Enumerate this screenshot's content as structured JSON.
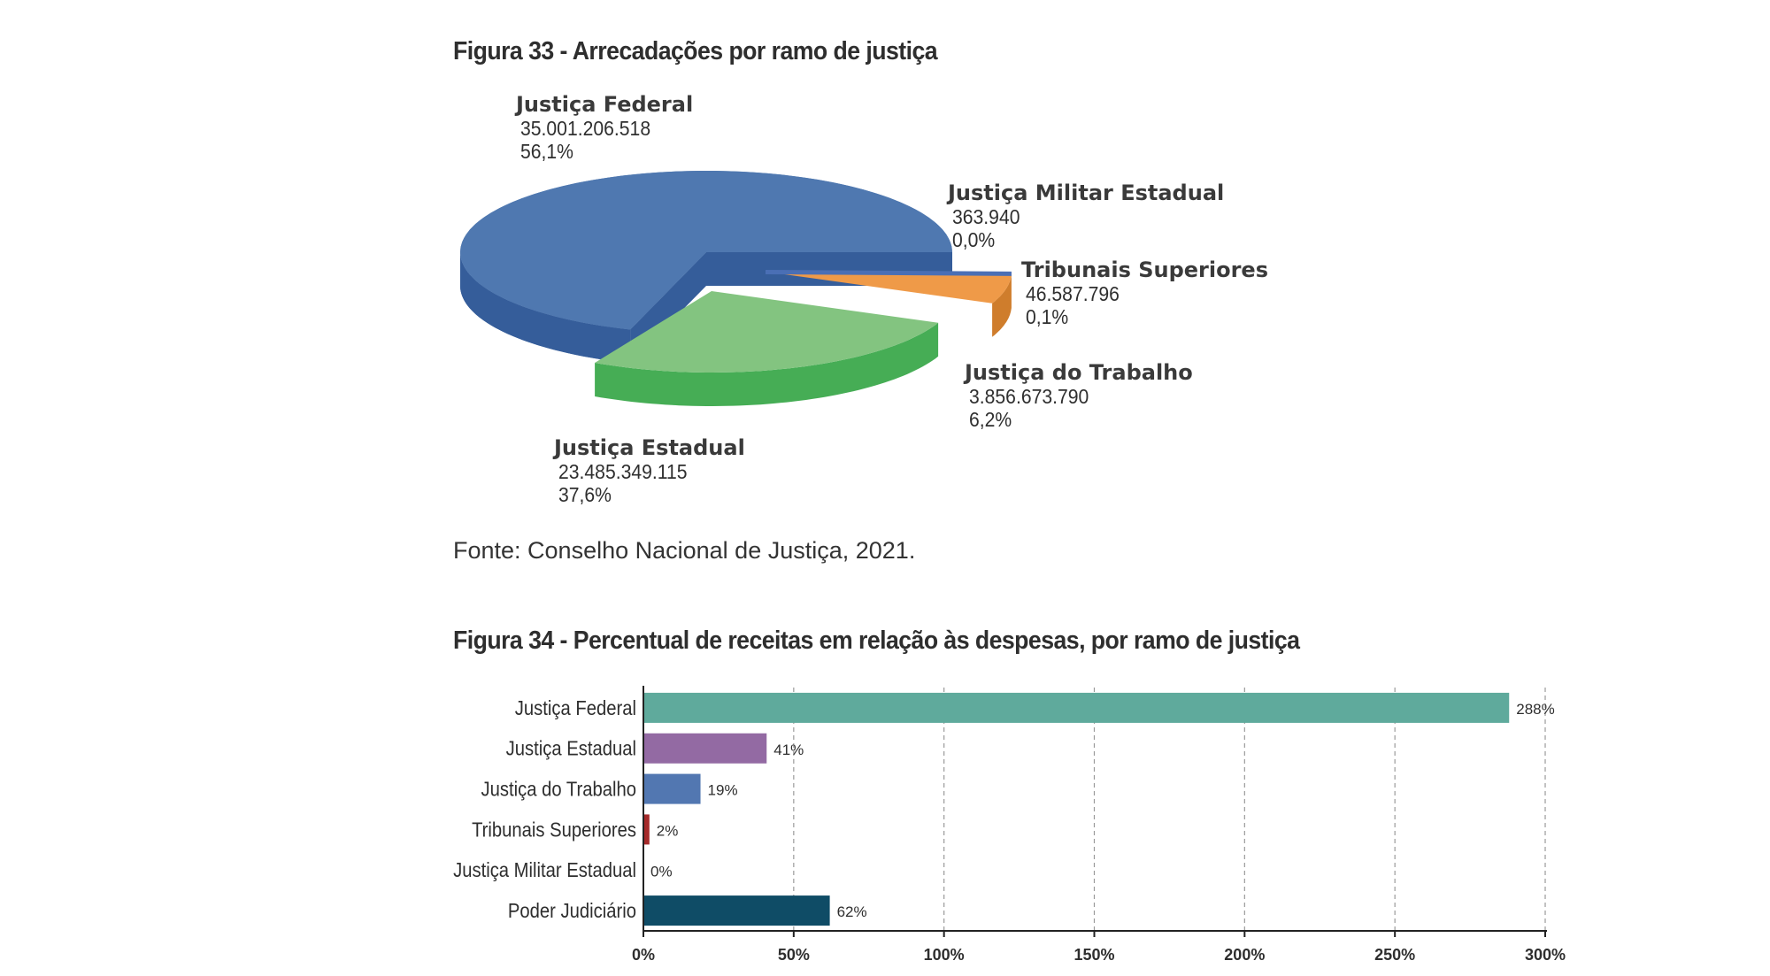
{
  "figure33": {
    "title": "Figura 33 - Arrecadações por ramo de justiça",
    "source": "Fonte: Conselho Nacional de Justiça, 2021."
  },
  "figure34": {
    "title": "Figura 34 - Percentual de receitas em relação às despesas, por ramo de justiça"
  },
  "chart_data": [
    {
      "type": "pie",
      "title": "Figura 33 - Arrecadações por ramo de justiça",
      "style": "3d-exploded",
      "slices": [
        {
          "label": "Justiça Federal",
          "value_text": "35.001.206.518",
          "value": 35001206518,
          "percent_text": "56,1%",
          "percent": 56.1,
          "color": "#4f78b0",
          "side_color": "#355d9a"
        },
        {
          "label": "Justiça Militar Estadual",
          "value_text": "363.940",
          "value": 363940,
          "percent_text": "0,0%",
          "percent": 0.0,
          "color": "#4a6fb5",
          "side_color": "#2f4f8f"
        },
        {
          "label": "Tribunais Superiores",
          "value_text": "46.587.796",
          "value": 46587796,
          "percent_text": "0,1%",
          "percent": 0.1,
          "color": "#ef9a48",
          "side_color": "#cf7d2c"
        },
        {
          "label": "Justiça do Trabalho",
          "value_text": "3.856.673.790",
          "value": 3856673790,
          "percent_text": "6,2%",
          "percent": 6.2,
          "color": "#ef9a48",
          "side_color": "#cf7d2c"
        },
        {
          "label": "Justiça Estadual",
          "value_text": "23.485.349.115",
          "value": 23485349115,
          "percent_text": "37,6%",
          "percent": 37.6,
          "color": "#83c480",
          "side_color": "#46ad55"
        }
      ]
    },
    {
      "type": "bar",
      "orientation": "horizontal",
      "title": "Figura 34 - Percentual de receitas em relação às despesas, por ramo de justiça",
      "categories": [
        "Justiça Federal",
        "Justiça Estadual",
        "Justiça do Trabalho",
        "Tribunais Superiores",
        "Justiça Militar Estadual",
        "Poder Judiciário"
      ],
      "values": [
        288,
        41,
        19,
        2,
        0,
        62
      ],
      "value_labels": [
        "288%",
        "41%",
        "19%",
        "2%",
        "0%",
        "62%"
      ],
      "colors": [
        "#5faa9c",
        "#936aa3",
        "#5277b1",
        "#a52a2a",
        "#a52a2a",
        "#0f4c66"
      ],
      "xlim": [
        0,
        300
      ],
      "xticks": [
        0,
        50,
        100,
        150,
        200,
        250,
        300
      ],
      "xtick_labels": [
        "0%",
        "50%",
        "100%",
        "150%",
        "200%",
        "250%",
        "300%"
      ],
      "grid": "vertical-dashed"
    }
  ]
}
